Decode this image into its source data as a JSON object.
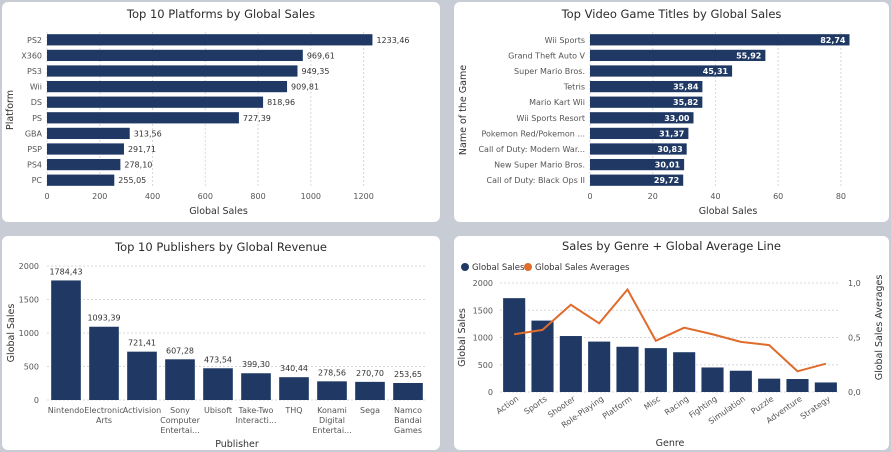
{
  "chart_data": [
    {
      "type": "bar",
      "orientation": "horizontal",
      "title": "Top 10 Platforms by Global Sales",
      "xlabel": "Global Sales",
      "ylabel": "Platform",
      "categories": [
        "PS2",
        "X360",
        "PS3",
        "Wii",
        "DS",
        "PS",
        "GBA",
        "PSP",
        "PS4",
        "PC"
      ],
      "values": [
        1233.46,
        969.61,
        949.35,
        909.81,
        818.96,
        727.39,
        313.56,
        291.71,
        278.1,
        255.05
      ],
      "value_labels": [
        "1233,46",
        "969,61",
        "949,35",
        "909,81",
        "818,96",
        "727,39",
        "313,56",
        "291,71",
        "278,10",
        "255,05"
      ],
      "xticks": [
        0,
        200,
        400,
        600,
        800,
        1000,
        1200
      ],
      "xlim": [
        0,
        1300
      ],
      "color": "#1f3864"
    },
    {
      "type": "bar",
      "orientation": "horizontal",
      "title": "Top Video Game Titles by Global Sales",
      "xlabel": "Global Sales",
      "ylabel": "Name of the Game",
      "categories": [
        "Wii Sports",
        "Grand Theft Auto V",
        "Super Mario Bros.",
        "Tetris",
        "Mario Kart Wii",
        "Wii Sports Resort",
        "Pokemon Red/Pokemon ...",
        "Call of Duty: Modern War...",
        "New Super Mario Bros.",
        "Call of Duty: Black Ops II"
      ],
      "values": [
        82.74,
        55.92,
        45.31,
        35.84,
        35.82,
        33.0,
        31.37,
        30.83,
        30.01,
        29.72
      ],
      "value_labels": [
        "82,74",
        "55,92",
        "45,31",
        "35,84",
        "35,82",
        "33,00",
        "31,37",
        "30,83",
        "30,01",
        "29,72"
      ],
      "xticks": [
        0,
        20,
        40,
        60,
        80
      ],
      "xlim": [
        0,
        88
      ],
      "color": "#1f3864"
    },
    {
      "type": "bar",
      "orientation": "vertical",
      "title": "Top 10 Publishers by Global Revenue",
      "xlabel": "Publisher",
      "ylabel": "Global Sales",
      "categories": [
        [
          "Nintendo"
        ],
        [
          "Electronic",
          "Arts"
        ],
        [
          "Activision"
        ],
        [
          "Sony",
          "Computer",
          "Entertai..."
        ],
        [
          "Ubisoft"
        ],
        [
          "Take-Two",
          "Interacti..."
        ],
        [
          "THQ"
        ],
        [
          "Konami",
          "Digital",
          "Entertai..."
        ],
        [
          "Sega"
        ],
        [
          "Namco",
          "Bandai",
          "Games"
        ]
      ],
      "values": [
        1784.43,
        1093.39,
        721.41,
        607.28,
        473.54,
        399.3,
        340.44,
        278.56,
        270.7,
        253.65
      ],
      "value_labels": [
        "1784,43",
        "1093,39",
        "721,41",
        "607,28",
        "473,54",
        "399,30",
        "340,44",
        "278,56",
        "270,70",
        "253,65"
      ],
      "yticks": [
        0,
        500,
        1000,
        1500,
        2000
      ],
      "ylim": [
        0,
        2000
      ],
      "color": "#1f3864"
    },
    {
      "type": "bar+line",
      "title": "Sales by Genre + Global Average Line",
      "xlabel": "Genre",
      "ylabel": "Global Sales",
      "y2label": "Global Sales Averages",
      "legend": [
        "Global Sales",
        "Global Sales Averages"
      ],
      "legend_position": "top-left",
      "categories": [
        "Action",
        "Sports",
        "Shooter",
        "Role-Playing",
        "Platform",
        "Misc",
        "Racing",
        "Fighting",
        "Simulation",
        "Puzzle",
        "Adventure",
        "Strategy"
      ],
      "bar_values": [
        1722,
        1310,
        1027,
        925,
        830,
        805,
        730,
        450,
        390,
        245,
        238,
        175
      ],
      "line_values": [
        0.53,
        0.57,
        0.8,
        0.63,
        0.94,
        0.47,
        0.59,
        0.53,
        0.46,
        0.43,
        0.19,
        0.26
      ],
      "yticks": [
        0,
        500,
        1000,
        1500,
        2000
      ],
      "ylim": [
        0,
        2000
      ],
      "y2ticks": [
        "0,0",
        "0,5",
        "1,0"
      ],
      "y2tick_values": [
        0,
        0.5,
        1.0
      ],
      "y2lim": [
        0,
        1.0
      ],
      "bar_color": "#1f3864",
      "line_color": "#e06c2c"
    }
  ]
}
